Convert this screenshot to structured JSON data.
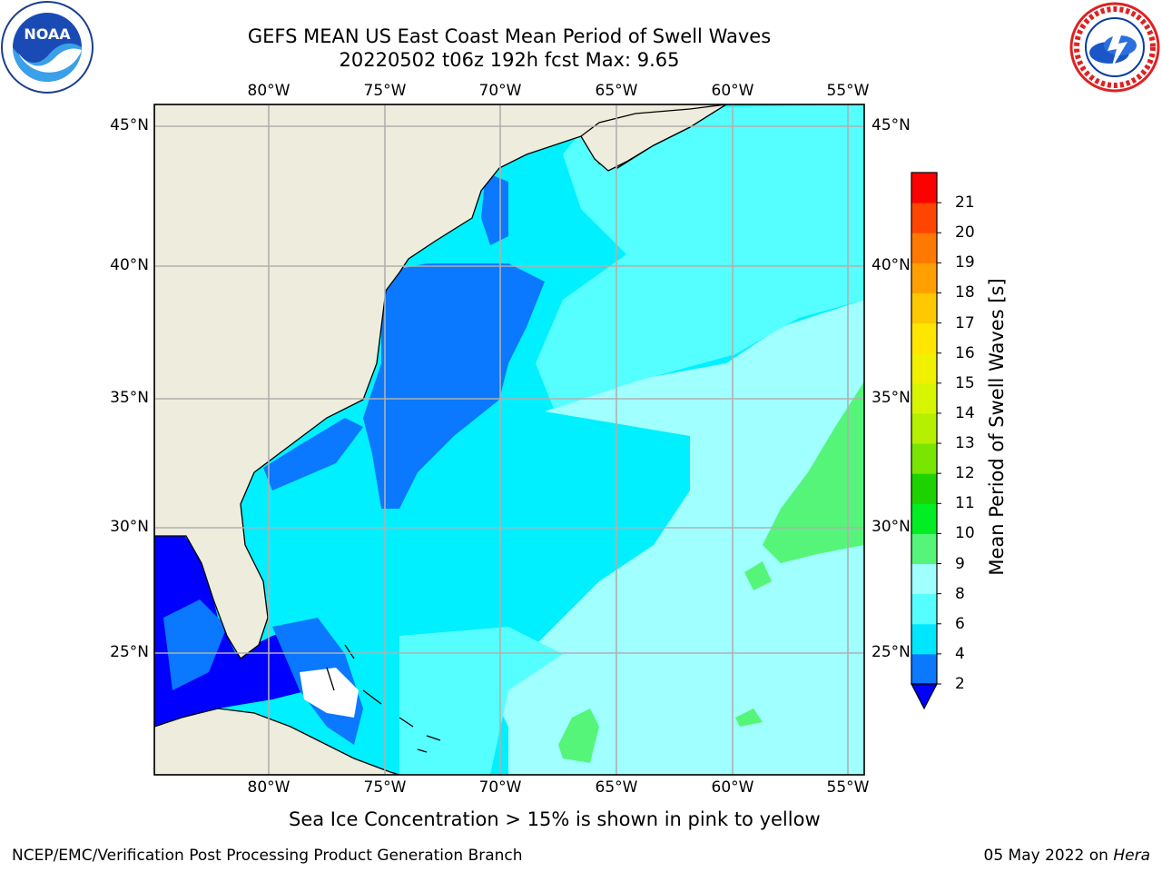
{
  "title": {
    "line1": "GEFS MEAN US East Coast Mean Period of Swell Waves",
    "line2": "20220502 t06z 192h fcst   Max: 9.65"
  },
  "logos": {
    "left": {
      "text": "NOAA",
      "icon": "noaa-logo"
    },
    "right": {
      "icon": "national-weather-service-logo"
    }
  },
  "map": {
    "lon_labels": [
      "80°W",
      "75°W",
      "70°W",
      "65°W",
      "60°W",
      "55°W"
    ],
    "lat_labels": [
      "45°N",
      "40°N",
      "35°N",
      "30°N",
      "25°N"
    ],
    "colors": {
      "land": "#eeecdc",
      "grid": "#b0b0b0",
      "coast": "#000000"
    }
  },
  "colorbar": {
    "label": "Mean Period of Swell Waves [s]",
    "ticks": [
      "2",
      "4",
      "6",
      "8",
      "9",
      "10",
      "11",
      "12",
      "13",
      "14",
      "15",
      "16",
      "17",
      "18",
      "19",
      "20",
      "21"
    ],
    "colors": [
      "#0a78ff",
      "#00e6ff",
      "#55ffff",
      "#a0ffff",
      "#55f57a",
      "#00ee22",
      "#1ed200",
      "#78e600",
      "#b4f000",
      "#d7f500",
      "#f0f000",
      "#ffe600",
      "#ffc800",
      "#ffa000",
      "#ff7800",
      "#ff4600",
      "#ff0000"
    ],
    "under_color": "#0000ff"
  },
  "footer": {
    "note": "Sea Ice Concentration > 15% is shown in pink to yellow",
    "branch": "NCEP/EMC/Verification Post Processing Product Generation Branch",
    "date": "05 May 2022 on",
    "host": "Hera"
  }
}
